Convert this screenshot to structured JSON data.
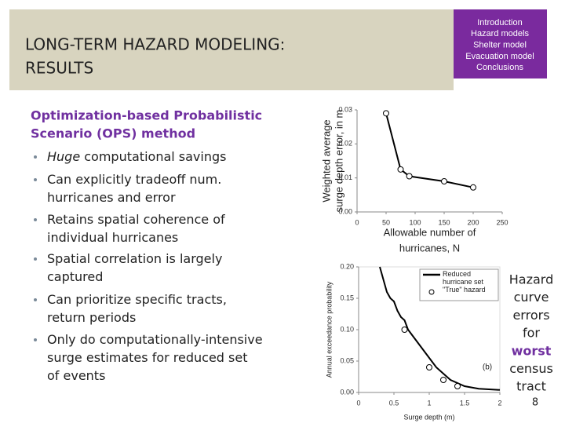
{
  "header": {
    "title": [
      "LONG-TERM HAZARD MODELING:",
      "RESULTS"
    ]
  },
  "nav": [
    "Introduction",
    "Hazard models",
    "Shelter model",
    "Evacuation model",
    "Conclusions"
  ],
  "subtitle": [
    "Optimization-based Probabilistic",
    "Scenario (OPS) method"
  ],
  "bullets": [
    {
      "em": "Huge",
      "lines": [
        " computational savings"
      ]
    },
    {
      "lines": [
        "Can explicitly tradeoff num.",
        "hurricanes and error"
      ]
    },
    {
      "lines": [
        "Retains spatial coherence of",
        "individual hurricanes"
      ]
    },
    {
      "lines": [
        "Spatial correlation is largely",
        "captured"
      ]
    },
    {
      "lines": [
        "Can prioritize specific tracts,",
        "return periods"
      ]
    },
    {
      "lines": [
        "Only do computationally-intensive",
        "surge estimates for reduced set",
        "of events"
      ]
    }
  ],
  "side_note": [
    "Hazard",
    "curve",
    "errors",
    "for",
    "worst",
    "census",
    "tract"
  ],
  "page_number": "8",
  "chart_data": [
    {
      "type": "line",
      "xlabel": [
        "Allowable number of",
        "hurricanes, N"
      ],
      "ylabel": [
        "Weighted average",
        "surge depth error, in m"
      ],
      "xlim": [
        0,
        250
      ],
      "xticks": [
        0,
        50,
        100,
        150,
        200,
        250
      ],
      "ylim": [
        0,
        0.03
      ],
      "yticks": [
        {
          "value": 0,
          "label": "0.00"
        },
        0.01,
        0.02,
        0.03
      ],
      "series": [
        {
          "color": "#000000",
          "marker": "circle",
          "line": true,
          "x": [
            50,
            75,
            90,
            150,
            200
          ],
          "values": [
            0.029,
            0.0125,
            0.0105,
            0.009,
            0.0072
          ]
        }
      ]
    },
    {
      "type": "line",
      "xlabel": [
        "Surge depth (m)"
      ],
      "ylabel": [
        "Annual exceedance probability"
      ],
      "annotation": "(b)",
      "xlim": [
        0,
        2
      ],
      "xticks": [
        0,
        0.5,
        1,
        1.5,
        2
      ],
      "ylim": [
        0,
        0.2
      ],
      "yticks": [
        {
          "value": 0,
          "label": "0.00"
        },
        0.05,
        {
          "value": 0.1,
          "label": "0.10"
        },
        0.15,
        {
          "value": 0.2,
          "label": "0.20"
        }
      ],
      "series": [
        {
          "name": "Reduced hurricane set",
          "color": "#000000",
          "marker": "none",
          "line": true,
          "x": [
            0.3,
            0.35,
            0.4,
            0.45,
            0.5,
            0.55,
            0.6,
            0.65,
            0.7,
            0.8,
            0.9,
            1.0,
            1.1,
            1.2,
            1.3,
            1.4,
            1.5,
            1.7,
            2.0
          ],
          "values": [
            0.2,
            0.18,
            0.16,
            0.15,
            0.145,
            0.13,
            0.12,
            0.115,
            0.1,
            0.085,
            0.07,
            0.055,
            0.04,
            0.03,
            0.02,
            0.015,
            0.01,
            0.006,
            0.004
          ]
        },
        {
          "name": "\"True\" hazard",
          "color": "#000000",
          "marker": "circle",
          "line": false,
          "x": [
            0.65,
            1.0,
            1.2,
            1.4
          ],
          "values": [
            0.1,
            0.04,
            0.02,
            0.01
          ]
        }
      ]
    }
  ]
}
